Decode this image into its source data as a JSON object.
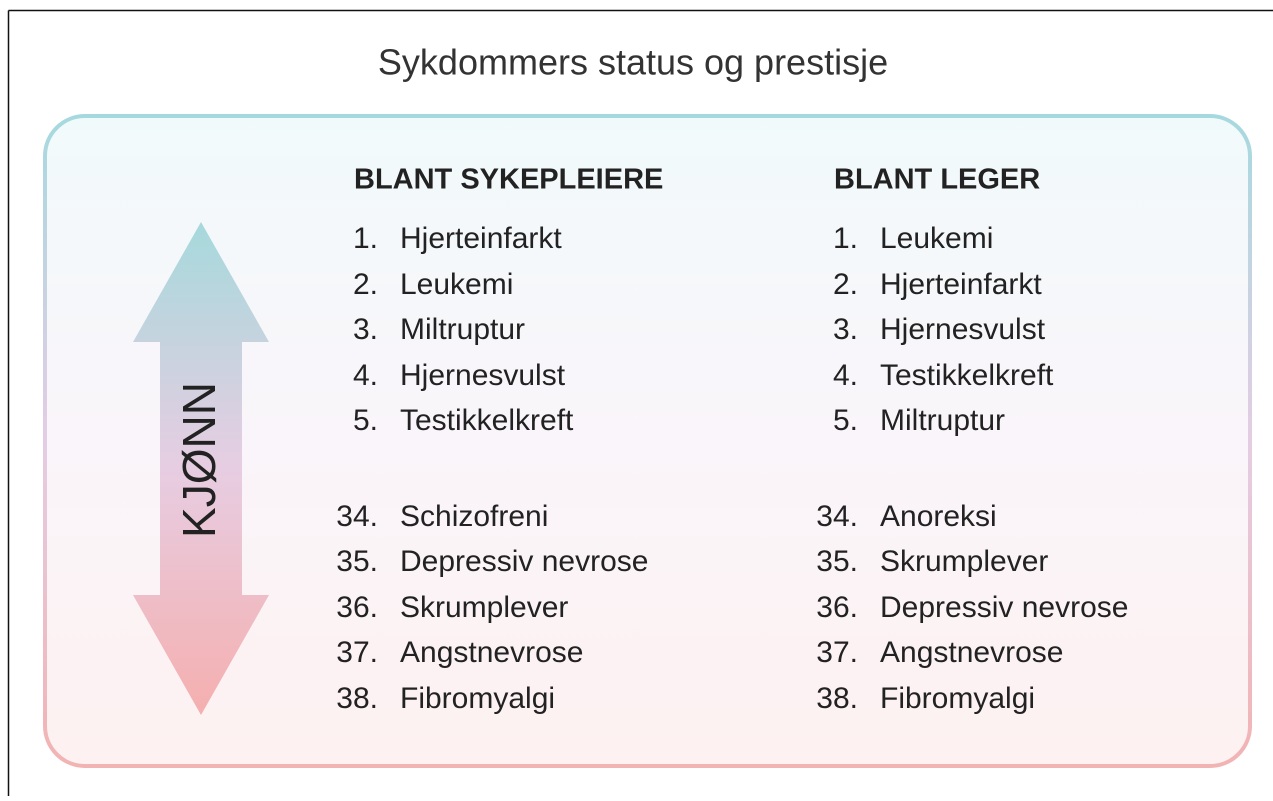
{
  "title": "Sykdommers status og prestisje",
  "arrow_label": "KJØNN",
  "columns": [
    {
      "heading": "BLANT SYKEPLEIERE",
      "items": [
        {
          "rank": "1.",
          "name": "Hjerteinfarkt"
        },
        {
          "rank": "2.",
          "name": "Leukemi"
        },
        {
          "rank": "3.",
          "name": "Miltruptur"
        },
        {
          "rank": "4.",
          "name": "Hjernesvulst"
        },
        {
          "rank": "5.",
          "name": "Testikkelkreft"
        },
        {
          "rank": "34.",
          "name": "Schizofreni"
        },
        {
          "rank": "35.",
          "name": "Depressiv nevrose"
        },
        {
          "rank": "36.",
          "name": "Skrumplever"
        },
        {
          "rank": "37.",
          "name": "Angstnevrose"
        },
        {
          "rank": "38.",
          "name": "Fibromyalgi"
        }
      ]
    },
    {
      "heading": "BLANT LEGER",
      "items": [
        {
          "rank": "1.",
          "name": "Leukemi"
        },
        {
          "rank": "2.",
          "name": "Hjerteinfarkt"
        },
        {
          "rank": "3.",
          "name": "Hjernesvulst"
        },
        {
          "rank": "4.",
          "name": "Testikkelkreft"
        },
        {
          "rank": "5.",
          "name": "Miltruptur"
        },
        {
          "rank": "34.",
          "name": "Anoreksi"
        },
        {
          "rank": "35.",
          "name": "Skrumplever"
        },
        {
          "rank": "36.",
          "name": "Depressiv nevrose"
        },
        {
          "rank": "37.",
          "name": "Angstnevrose"
        },
        {
          "rank": "38.",
          "name": "Fibromyalgi"
        }
      ]
    }
  ]
}
